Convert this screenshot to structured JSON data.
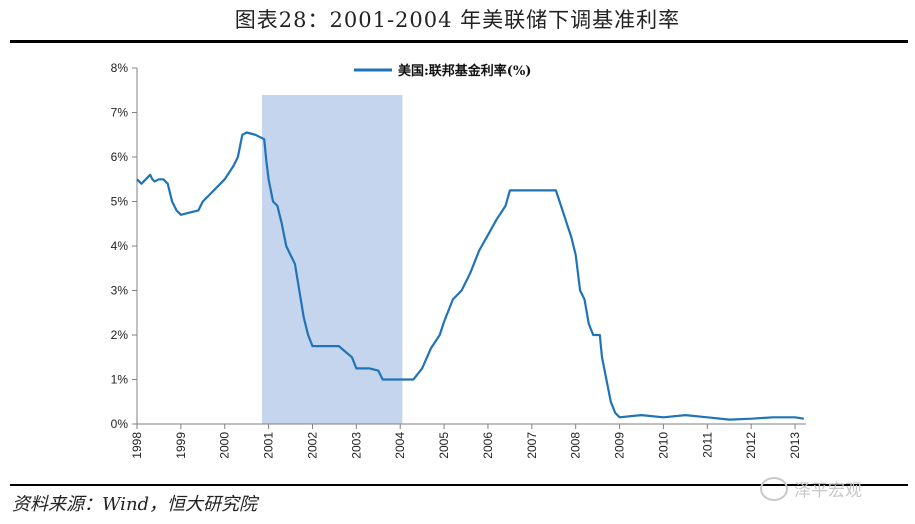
{
  "header": {
    "title": "图表28：2001-2004 年美联储下调基准利率"
  },
  "footer": {
    "source": "资料来源：Wind，恒大研究院",
    "watermark": "泽平宏观"
  },
  "colors": {
    "line": "#1f73b7",
    "shade": "#c6d5ee"
  },
  "chart_data": {
    "type": "line",
    "title": "",
    "xlabel": "",
    "ylabel": "",
    "x_ticks": [
      "1998",
      "1999",
      "2000",
      "2001",
      "2002",
      "2003",
      "2004",
      "2005",
      "2006",
      "2007",
      "2008",
      "2009",
      "2010",
      "2011",
      "2012",
      "2013"
    ],
    "y_ticks": [
      "0%",
      "1%",
      "2%",
      "3%",
      "4%",
      "5%",
      "6%",
      "7%",
      "8%"
    ],
    "xlim": [
      1998.0,
      2013.25
    ],
    "ylim": [
      0,
      8
    ],
    "grid": false,
    "legend_position": "top-center",
    "shaded_region": {
      "from": 2000.85,
      "to": 2004.05
    },
    "series": [
      {
        "name": "美国:联邦基金利率(%)",
        "x": [
          1998.0,
          1998.1,
          1998.2,
          1998.3,
          1998.35,
          1998.4,
          1998.5,
          1998.6,
          1998.7,
          1998.8,
          1998.9,
          1999.0,
          1999.2,
          1999.4,
          1999.5,
          1999.7,
          1999.9,
          2000.0,
          2000.2,
          2000.3,
          2000.4,
          2000.5,
          2000.7,
          2000.9,
          2000.95,
          2001.0,
          2001.1,
          2001.2,
          2001.3,
          2001.4,
          2001.5,
          2001.6,
          2001.7,
          2001.8,
          2001.9,
          2002.0,
          2002.3,
          2002.6,
          2002.9,
          2003.0,
          2003.3,
          2003.5,
          2003.6,
          2003.9,
          2004.0,
          2004.3,
          2004.5,
          2004.7,
          2004.9,
          2005.0,
          2005.2,
          2005.4,
          2005.6,
          2005.8,
          2006.0,
          2006.2,
          2006.4,
          2006.5,
          2006.7,
          2007.0,
          2007.3,
          2007.55,
          2007.7,
          2007.8,
          2007.9,
          2008.0,
          2008.1,
          2008.2,
          2008.3,
          2008.4,
          2008.5,
          2008.55,
          2008.6,
          2008.7,
          2008.8,
          2008.9,
          2009.0,
          2009.5,
          2010.0,
          2010.5,
          2011.0,
          2011.5,
          2012.0,
          2012.5,
          2013.0,
          2013.2
        ],
        "y": [
          5.5,
          5.4,
          5.5,
          5.6,
          5.5,
          5.45,
          5.5,
          5.5,
          5.4,
          5.0,
          4.8,
          4.7,
          4.75,
          4.8,
          5.0,
          5.2,
          5.4,
          5.5,
          5.8,
          6.0,
          6.5,
          6.55,
          6.5,
          6.4,
          5.9,
          5.5,
          5.0,
          4.9,
          4.5,
          4.0,
          3.8,
          3.6,
          3.0,
          2.4,
          2.0,
          1.75,
          1.75,
          1.75,
          1.5,
          1.25,
          1.25,
          1.2,
          1.0,
          1.0,
          1.0,
          1.0,
          1.25,
          1.7,
          2.0,
          2.3,
          2.8,
          3.0,
          3.4,
          3.9,
          4.25,
          4.6,
          4.9,
          5.25,
          5.25,
          5.25,
          5.25,
          5.25,
          4.8,
          4.5,
          4.2,
          3.8,
          3.0,
          2.8,
          2.25,
          2.0,
          2.0,
          2.0,
          1.5,
          1.0,
          0.5,
          0.25,
          0.15,
          0.2,
          0.15,
          0.2,
          0.15,
          0.1,
          0.12,
          0.15,
          0.15,
          0.12
        ]
      }
    ]
  }
}
